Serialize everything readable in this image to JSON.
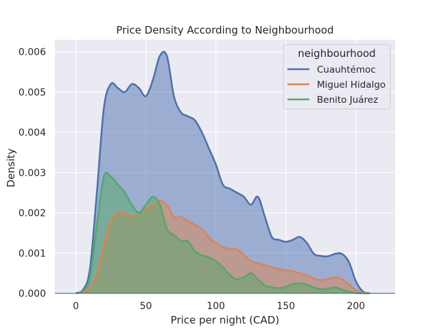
{
  "chart_data": {
    "type": "area",
    "title": "Price Density According to Neighbourhood",
    "xlabel": "Price per night (CAD)",
    "ylabel": "Density",
    "xlim": [
      -15,
      228
    ],
    "ylim": [
      0,
      0.0063
    ],
    "xticks": [
      0,
      50,
      100,
      150,
      200
    ],
    "yticks": [
      0.0,
      0.001,
      0.002,
      0.003,
      0.004,
      0.005,
      0.006
    ],
    "xtick_labels": [
      "0",
      "50",
      "100",
      "150",
      "200"
    ],
    "ytick_labels": [
      "0.000",
      "0.001",
      "0.002",
      "0.003",
      "0.004",
      "0.005",
      "0.006"
    ],
    "grid": true,
    "legend": {
      "title": "neighbourhood",
      "placement": "top-right"
    },
    "series": [
      {
        "name": "Cuauhtémoc",
        "color": "#4c72b0",
        "x": [
          0,
          5,
          10,
          15,
          20,
          25,
          30,
          35,
          40,
          45,
          50,
          55,
          60,
          65,
          70,
          75,
          80,
          85,
          90,
          95,
          100,
          105,
          110,
          115,
          120,
          125,
          130,
          135,
          140,
          145,
          150,
          155,
          160,
          165,
          170,
          175,
          180,
          185,
          190,
          195,
          200,
          205,
          210
        ],
        "y": [
          1e-05,
          8e-05,
          0.0006,
          0.0025,
          0.0046,
          0.0052,
          0.0051,
          0.005,
          0.0052,
          0.0051,
          0.0049,
          0.0053,
          0.0059,
          0.0059,
          0.0049,
          0.0045,
          0.0044,
          0.0043,
          0.004,
          0.0036,
          0.0032,
          0.0027,
          0.0026,
          0.0025,
          0.0024,
          0.0022,
          0.0024,
          0.0019,
          0.0014,
          0.00133,
          0.00128,
          0.00133,
          0.0014,
          0.00125,
          0.00098,
          0.00093,
          0.00092,
          0.00098,
          0.00098,
          0.00078,
          0.0003,
          5e-05,
          5e-06
        ]
      },
      {
        "name": "Miguel Hidalgo",
        "color": "#dd8452",
        "x": [
          0,
          5,
          10,
          15,
          20,
          25,
          30,
          35,
          40,
          45,
          50,
          55,
          60,
          65,
          70,
          75,
          80,
          85,
          90,
          95,
          100,
          105,
          110,
          115,
          120,
          125,
          130,
          135,
          140,
          145,
          150,
          155,
          160,
          165,
          170,
          175,
          180,
          185,
          190,
          195,
          200,
          205,
          210
        ],
        "y": [
          3e-06,
          3e-05,
          0.00015,
          0.0005,
          0.0012,
          0.0018,
          0.002,
          0.002,
          0.0019,
          0.002,
          0.0021,
          0.0022,
          0.0023,
          0.0022,
          0.0019,
          0.0019,
          0.0018,
          0.0017,
          0.0016,
          0.0014,
          0.00125,
          0.00115,
          0.0011,
          0.0011,
          0.00095,
          0.0008,
          0.00075,
          0.0007,
          0.00065,
          0.0006,
          0.00058,
          0.00055,
          0.0005,
          0.00045,
          0.00037,
          0.00033,
          0.00035,
          0.0004,
          0.00035,
          0.00022,
          8e-05,
          2e-05,
          3e-06
        ]
      },
      {
        "name": "Benito Juárez",
        "color": "#55a868",
        "x": [
          0,
          5,
          10,
          15,
          20,
          25,
          30,
          35,
          40,
          45,
          50,
          55,
          60,
          65,
          70,
          75,
          80,
          85,
          90,
          95,
          100,
          105,
          110,
          115,
          120,
          125,
          130,
          135,
          140,
          145,
          150,
          155,
          160,
          165,
          170,
          175,
          180,
          185,
          190,
          195,
          200,
          205,
          210
        ],
        "y": [
          5e-06,
          5e-05,
          0.0004,
          0.0017,
          0.0029,
          0.0029,
          0.0027,
          0.0025,
          0.0022,
          0.002,
          0.0022,
          0.0024,
          0.0022,
          0.0016,
          0.00145,
          0.0013,
          0.0013,
          0.00105,
          0.00095,
          0.0009,
          0.0008,
          0.00065,
          0.00045,
          0.00035,
          0.0004,
          0.0005,
          0.00035,
          0.0002,
          0.00015,
          0.00013,
          0.00016,
          0.00023,
          0.00025,
          0.00022,
          0.00015,
          0.0001,
          0.00012,
          0.00015,
          9e-05,
          4e-05,
          1e-05,
          2e-06,
          5e-07
        ]
      }
    ]
  },
  "style": {
    "plot_background": "#eaeaf2",
    "grid_color": "#ffffff",
    "fill_opacity": 0.5
  }
}
